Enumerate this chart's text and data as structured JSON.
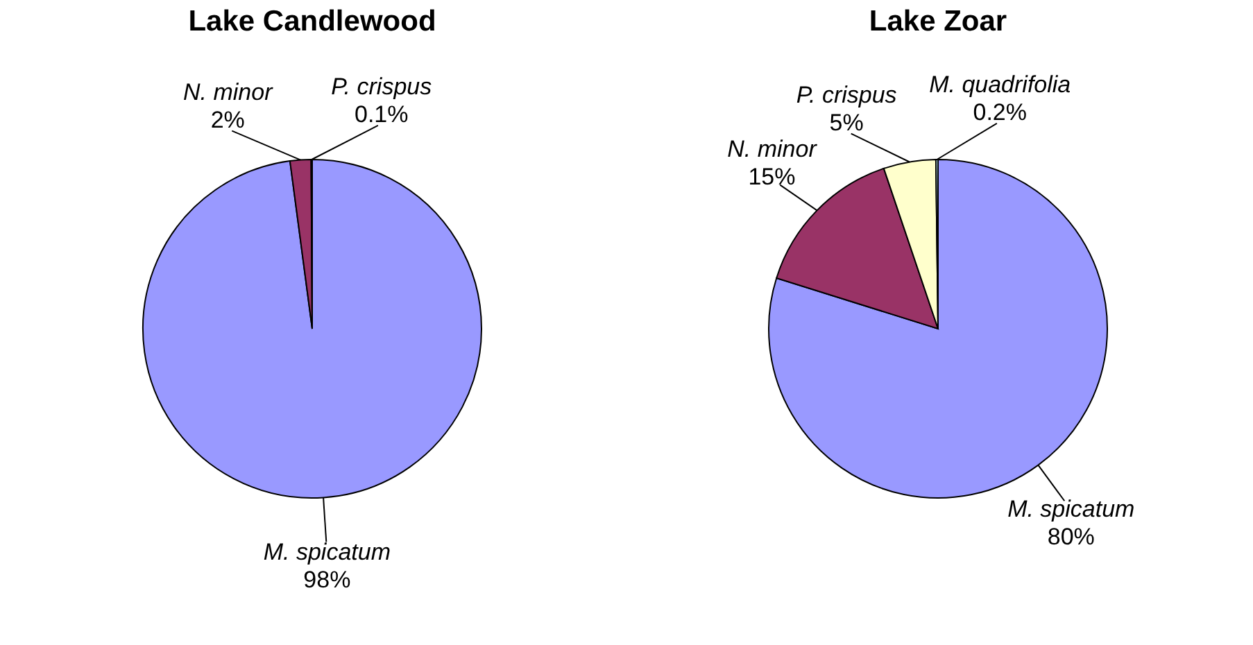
{
  "chart_data": [
    {
      "type": "pie",
      "title": "Lake Candlewood",
      "categories": [
        "M. spicatum",
        "N. minor",
        "P. crispus"
      ],
      "values": [
        98,
        2,
        0.1
      ],
      "value_labels": [
        "98%",
        "2%",
        "0.1%"
      ],
      "colors": [
        "#9999ff",
        "#993366",
        "#ffffcc"
      ]
    },
    {
      "type": "pie",
      "title": "Lake Zoar",
      "categories": [
        "M. spicatum",
        "N. minor",
        "P. crispus",
        "M. quadrifolia"
      ],
      "values": [
        80,
        15,
        5,
        0.2
      ],
      "value_labels": [
        "80%",
        "15%",
        "5%",
        "0.2%"
      ],
      "colors": [
        "#9999ff",
        "#993366",
        "#ffffcc",
        "#ccffff"
      ]
    }
  ]
}
